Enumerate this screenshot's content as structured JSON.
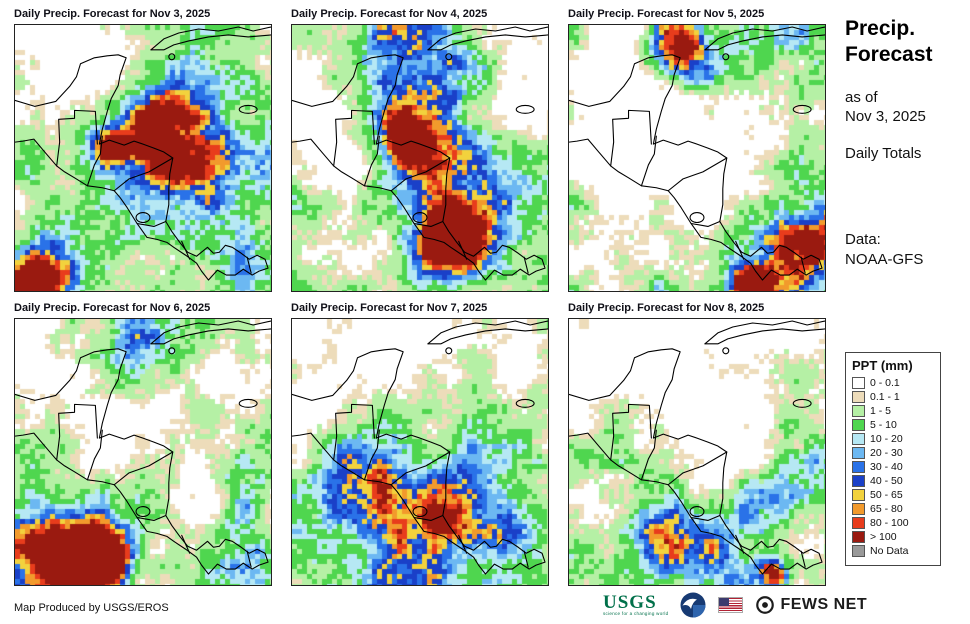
{
  "panels": [
    {
      "title": "Daily Precip. Forecast for Nov 3, 2025"
    },
    {
      "title": "Daily Precip. Forecast for Nov 4, 2025"
    },
    {
      "title": "Daily Precip. Forecast for Nov 5, 2025"
    },
    {
      "title": "Daily Precip. Forecast for Nov 6, 2025"
    },
    {
      "title": "Daily Precip. Forecast for Nov 7, 2025"
    },
    {
      "title": "Daily Precip. Forecast for Nov 8, 2025"
    }
  ],
  "sidebar": {
    "title_line1": "Precip.",
    "title_line2": "Forecast",
    "as_of_label": "as of",
    "as_of_date": "Nov 3, 2025",
    "daily_totals": "Daily Totals",
    "data_label": "Data:",
    "data_source": "NOAA-GFS",
    "legend": {
      "title": "PPT (mm)",
      "entries": [
        {
          "label": "0 - 0.1",
          "color": "#ffffff"
        },
        {
          "label": "0.1 - 1",
          "color": "#eddcba"
        },
        {
          "label": "1 - 5",
          "color": "#b5f0a5"
        },
        {
          "label": "5 - 10",
          "color": "#4fd64f"
        },
        {
          "label": "10 - 20",
          "color": "#b6e8f4"
        },
        {
          "label": "20 - 30",
          "color": "#6cb8f2"
        },
        {
          "label": "30 - 40",
          "color": "#2a72e8"
        },
        {
          "label": "40 - 50",
          "color": "#1a40c8"
        },
        {
          "label": "50 - 65",
          "color": "#f2d23d"
        },
        {
          "label": "65 - 80",
          "color": "#f29a2c"
        },
        {
          "label": "80 - 100",
          "color": "#e83c1c"
        },
        {
          "label": "> 100",
          "color": "#9a1a10"
        },
        {
          "label": "No Data",
          "color": "#999999"
        }
      ]
    }
  },
  "footer": {
    "credit": "Map Produced by USGS/EROS"
  },
  "logos": {
    "usgs_text": "USGS",
    "usgs_tagline": "science for a changing world",
    "fews_net": "FEWS NET"
  }
}
